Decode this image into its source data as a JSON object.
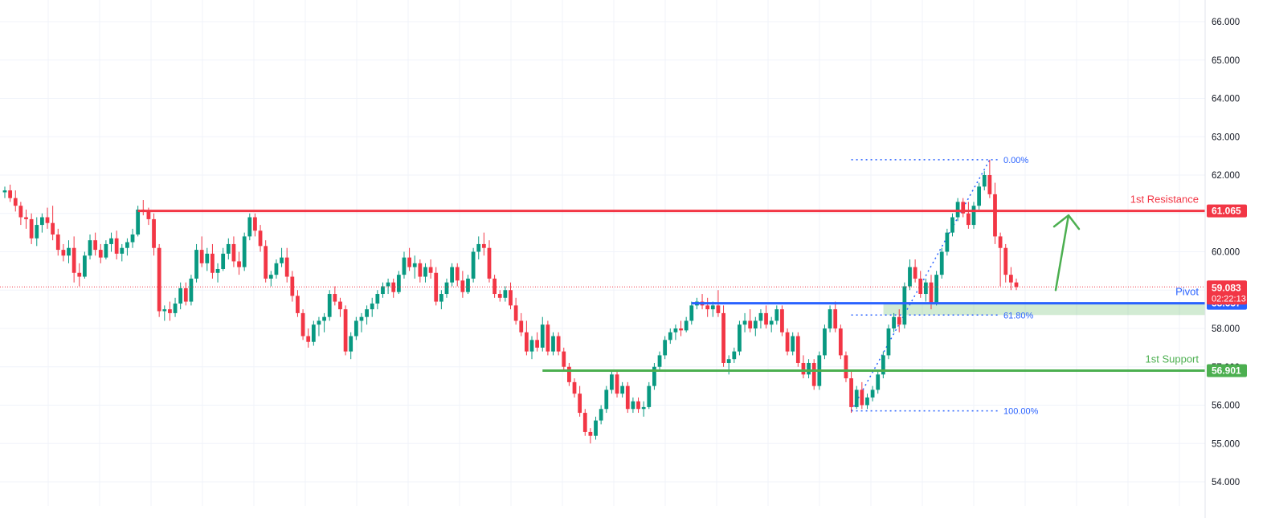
{
  "chart_data": {
    "type": "candlestick",
    "y_axis_ticks": [
      "54.000",
      "55.000",
      "56.000",
      "57.000",
      "58.000",
      "59.000",
      "60.000",
      "61.000",
      "62.000",
      "63.000",
      "64.000",
      "65.000",
      "66.000"
    ],
    "ylim": [
      53.6,
      66.3
    ],
    "grid": true,
    "candles": [
      [
        61.55,
        61.7,
        61.4,
        61.6
      ],
      [
        61.6,
        61.75,
        61.3,
        61.4
      ],
      [
        61.4,
        61.6,
        61.05,
        61.2
      ],
      [
        61.2,
        61.3,
        60.7,
        60.9
      ],
      [
        60.9,
        61.1,
        60.6,
        60.85
      ],
      [
        60.85,
        61.0,
        60.2,
        60.35
      ],
      [
        60.35,
        60.9,
        60.15,
        60.7
      ],
      [
        60.7,
        61.0,
        60.5,
        60.9
      ],
      [
        60.9,
        61.15,
        60.6,
        60.75
      ],
      [
        60.75,
        61.2,
        60.3,
        60.45
      ],
      [
        60.45,
        60.6,
        59.9,
        60.05
      ],
      [
        60.05,
        60.2,
        59.75,
        59.9
      ],
      [
        59.9,
        60.3,
        59.7,
        60.1
      ],
      [
        60.1,
        60.4,
        59.2,
        59.45
      ],
      [
        59.45,
        59.7,
        59.1,
        59.35
      ],
      [
        59.35,
        60.0,
        59.3,
        59.9
      ],
      [
        59.9,
        60.45,
        59.8,
        60.3
      ],
      [
        60.3,
        60.5,
        59.9,
        60.05
      ],
      [
        60.05,
        60.2,
        59.7,
        59.85
      ],
      [
        59.85,
        60.3,
        59.8,
        60.2
      ],
      [
        60.2,
        60.5,
        60.0,
        60.35
      ],
      [
        60.35,
        60.55,
        59.8,
        59.95
      ],
      [
        59.95,
        60.2,
        59.75,
        60.1
      ],
      [
        60.1,
        60.35,
        59.9,
        60.25
      ],
      [
        60.25,
        60.6,
        60.1,
        60.45
      ],
      [
        60.45,
        61.2,
        60.4,
        61.1
      ],
      [
        61.1,
        61.35,
        60.95,
        61.05
      ],
      [
        61.05,
        61.15,
        60.7,
        60.85
      ],
      [
        60.85,
        61.0,
        59.9,
        60.1
      ],
      [
        60.1,
        60.2,
        58.3,
        58.45
      ],
      [
        58.45,
        58.6,
        58.2,
        58.5
      ],
      [
        58.5,
        58.7,
        58.2,
        58.4
      ],
      [
        58.4,
        58.8,
        58.3,
        58.65
      ],
      [
        58.65,
        59.2,
        58.5,
        59.05
      ],
      [
        59.05,
        59.2,
        58.6,
        58.7
      ],
      [
        58.7,
        59.4,
        58.6,
        59.3
      ],
      [
        59.3,
        60.2,
        59.2,
        60.05
      ],
      [
        60.05,
        60.4,
        59.6,
        59.7
      ],
      [
        59.7,
        60.1,
        59.5,
        59.95
      ],
      [
        59.95,
        60.2,
        59.3,
        59.45
      ],
      [
        59.45,
        59.7,
        59.2,
        59.55
      ],
      [
        59.55,
        60.1,
        59.5,
        59.95
      ],
      [
        59.95,
        60.35,
        59.8,
        60.2
      ],
      [
        60.2,
        60.4,
        59.6,
        59.75
      ],
      [
        59.75,
        60.0,
        59.4,
        59.6
      ],
      [
        59.6,
        60.5,
        59.5,
        60.4
      ],
      [
        60.4,
        61.0,
        60.3,
        60.9
      ],
      [
        60.9,
        61.0,
        60.4,
        60.55
      ],
      [
        60.55,
        60.7,
        60.0,
        60.15
      ],
      [
        60.15,
        60.3,
        59.2,
        59.3
      ],
      [
        59.3,
        59.5,
        59.1,
        59.4
      ],
      [
        59.4,
        59.8,
        59.3,
        59.7
      ],
      [
        59.7,
        60.1,
        59.6,
        59.85
      ],
      [
        59.85,
        60.1,
        59.2,
        59.35
      ],
      [
        59.35,
        59.5,
        58.7,
        58.85
      ],
      [
        58.85,
        59.0,
        58.3,
        58.4
      ],
      [
        58.4,
        58.5,
        57.7,
        57.8
      ],
      [
        57.8,
        58.0,
        57.5,
        57.65
      ],
      [
        57.65,
        58.2,
        57.55,
        58.1
      ],
      [
        58.1,
        58.3,
        57.8,
        58.2
      ],
      [
        58.2,
        58.4,
        57.9,
        58.3
      ],
      [
        58.3,
        59.0,
        58.2,
        58.9
      ],
      [
        58.9,
        59.1,
        58.6,
        58.7
      ],
      [
        58.7,
        58.8,
        58.3,
        58.5
      ],
      [
        58.5,
        58.6,
        57.3,
        57.4
      ],
      [
        57.4,
        57.9,
        57.2,
        57.8
      ],
      [
        57.8,
        58.3,
        57.7,
        58.2
      ],
      [
        58.2,
        58.4,
        57.9,
        58.3
      ],
      [
        58.3,
        58.6,
        58.1,
        58.5
      ],
      [
        58.5,
        58.8,
        58.3,
        58.65
      ],
      [
        58.65,
        59.0,
        58.5,
        58.9
      ],
      [
        58.9,
        59.2,
        58.8,
        59.1
      ],
      [
        59.1,
        59.3,
        58.9,
        59.2
      ],
      [
        59.2,
        59.3,
        58.8,
        58.95
      ],
      [
        58.95,
        59.5,
        58.9,
        59.4
      ],
      [
        59.4,
        60.0,
        59.3,
        59.85
      ],
      [
        59.85,
        60.1,
        59.5,
        59.6
      ],
      [
        59.6,
        59.9,
        59.3,
        59.7
      ],
      [
        59.7,
        59.8,
        59.2,
        59.35
      ],
      [
        59.35,
        59.7,
        59.2,
        59.6
      ],
      [
        59.6,
        59.8,
        59.3,
        59.45
      ],
      [
        59.45,
        59.6,
        58.6,
        58.7
      ],
      [
        58.7,
        59.0,
        58.5,
        58.9
      ],
      [
        58.9,
        59.3,
        58.8,
        59.2
      ],
      [
        59.2,
        59.7,
        59.1,
        59.6
      ],
      [
        59.6,
        59.7,
        59.1,
        59.25
      ],
      [
        59.25,
        59.5,
        58.8,
        58.95
      ],
      [
        58.95,
        59.4,
        58.9,
        59.3
      ],
      [
        59.3,
        60.1,
        59.2,
        60.0
      ],
      [
        60.0,
        60.4,
        59.8,
        60.2
      ],
      [
        60.2,
        60.5,
        59.9,
        60.1
      ],
      [
        60.1,
        60.3,
        59.2,
        59.3
      ],
      [
        59.3,
        59.4,
        58.8,
        58.9
      ],
      [
        58.9,
        59.0,
        58.7,
        58.8
      ],
      [
        58.8,
        59.1,
        58.7,
        59.0
      ],
      [
        59.0,
        59.2,
        58.5,
        58.6
      ],
      [
        58.6,
        58.8,
        58.1,
        58.2
      ],
      [
        58.2,
        58.4,
        57.8,
        57.9
      ],
      [
        57.9,
        58.2,
        57.3,
        57.4
      ],
      [
        57.4,
        57.8,
        57.2,
        57.7
      ],
      [
        57.7,
        57.9,
        57.4,
        57.5
      ],
      [
        57.5,
        58.3,
        57.4,
        58.1
      ],
      [
        58.1,
        58.2,
        57.3,
        57.4
      ],
      [
        57.4,
        57.9,
        57.3,
        57.8
      ],
      [
        57.8,
        57.9,
        57.3,
        57.4
      ],
      [
        57.4,
        57.5,
        56.9,
        57.0
      ],
      [
        57.0,
        57.1,
        56.5,
        56.6
      ],
      [
        56.6,
        56.7,
        56.2,
        56.3
      ],
      [
        56.3,
        56.5,
        55.7,
        55.8
      ],
      [
        55.8,
        55.9,
        55.2,
        55.3
      ],
      [
        55.3,
        55.4,
        55.0,
        55.2
      ],
      [
        55.2,
        55.7,
        55.1,
        55.6
      ],
      [
        55.6,
        56.0,
        55.5,
        55.9
      ],
      [
        55.9,
        56.5,
        55.8,
        56.4
      ],
      [
        56.4,
        56.9,
        56.3,
        56.8
      ],
      [
        56.8,
        56.9,
        56.2,
        56.3
      ],
      [
        56.3,
        56.6,
        56.2,
        56.5
      ],
      [
        56.5,
        56.6,
        55.8,
        55.9
      ],
      [
        55.9,
        56.2,
        55.8,
        56.1
      ],
      [
        56.1,
        56.2,
        55.8,
        55.9
      ],
      [
        55.9,
        56.1,
        55.7,
        55.95
      ],
      [
        55.95,
        56.6,
        55.9,
        56.5
      ],
      [
        56.5,
        57.1,
        56.4,
        57.0
      ],
      [
        57.0,
        57.4,
        56.9,
        57.3
      ],
      [
        57.3,
        57.8,
        57.2,
        57.7
      ],
      [
        57.7,
        58.0,
        57.6,
        57.9
      ],
      [
        57.9,
        58.1,
        57.7,
        58.0
      ],
      [
        58.0,
        58.2,
        57.8,
        57.95
      ],
      [
        57.95,
        58.3,
        57.9,
        58.2
      ],
      [
        58.2,
        58.7,
        58.1,
        58.6
      ],
      [
        58.6,
        58.8,
        58.5,
        58.7
      ],
      [
        58.7,
        58.9,
        58.5,
        58.6
      ],
      [
        58.6,
        58.8,
        58.3,
        58.5
      ],
      [
        58.5,
        58.7,
        58.3,
        58.6
      ],
      [
        58.6,
        59.0,
        58.3,
        58.4
      ],
      [
        58.4,
        58.6,
        57.0,
        57.1
      ],
      [
        57.1,
        57.3,
        56.8,
        57.2
      ],
      [
        57.2,
        57.5,
        57.1,
        57.4
      ],
      [
        57.4,
        58.2,
        57.3,
        58.1
      ],
      [
        58.1,
        58.4,
        57.9,
        58.2
      ],
      [
        58.2,
        58.5,
        57.9,
        58.0
      ],
      [
        58.0,
        58.3,
        57.8,
        58.2
      ],
      [
        58.2,
        58.5,
        58.0,
        58.4
      ],
      [
        58.4,
        58.6,
        58.0,
        58.1
      ],
      [
        58.1,
        58.3,
        57.9,
        58.2
      ],
      [
        58.2,
        58.6,
        58.1,
        58.5
      ],
      [
        58.5,
        58.6,
        57.8,
        57.9
      ],
      [
        57.9,
        58.0,
        57.3,
        57.4
      ],
      [
        57.4,
        57.9,
        57.3,
        57.8
      ],
      [
        57.8,
        57.9,
        57.0,
        57.1
      ],
      [
        57.1,
        57.3,
        56.7,
        56.8
      ],
      [
        56.8,
        57.2,
        56.7,
        57.1
      ],
      [
        57.1,
        57.2,
        56.4,
        56.5
      ],
      [
        56.5,
        57.4,
        56.4,
        57.3
      ],
      [
        57.3,
        58.1,
        57.2,
        58.0
      ],
      [
        58.0,
        58.6,
        57.9,
        58.5
      ],
      [
        58.5,
        58.7,
        57.9,
        58.0
      ],
      [
        58.0,
        58.1,
        57.2,
        57.3
      ],
      [
        57.3,
        57.4,
        56.6,
        56.7
      ],
      [
        56.7,
        56.9,
        55.8,
        55.95
      ],
      [
        55.95,
        56.5,
        55.9,
        56.4
      ],
      [
        56.4,
        56.6,
        55.9,
        56.0
      ],
      [
        56.0,
        56.3,
        55.9,
        56.2
      ],
      [
        56.2,
        56.5,
        56.1,
        56.4
      ],
      [
        56.4,
        56.9,
        56.3,
        56.8
      ],
      [
        56.8,
        57.4,
        56.7,
        57.3
      ],
      [
        57.3,
        58.1,
        57.2,
        58.0
      ],
      [
        58.0,
        58.4,
        57.9,
        58.3
      ],
      [
        58.3,
        58.5,
        57.9,
        58.1
      ],
      [
        58.1,
        59.2,
        58.0,
        59.1
      ],
      [
        59.1,
        59.8,
        59.0,
        59.6
      ],
      [
        59.6,
        59.8,
        59.2,
        59.3
      ],
      [
        59.3,
        59.5,
        58.8,
        58.9
      ],
      [
        58.9,
        59.3,
        58.7,
        59.2
      ],
      [
        59.2,
        59.4,
        58.5,
        58.65
      ],
      [
        58.65,
        59.5,
        58.6,
        59.4
      ],
      [
        59.4,
        60.1,
        59.3,
        60.0
      ],
      [
        60.0,
        60.6,
        59.9,
        60.5
      ],
      [
        60.5,
        61.0,
        60.4,
        60.9
      ],
      [
        60.9,
        61.4,
        60.8,
        61.3
      ],
      [
        61.3,
        61.4,
        60.9,
        61.0
      ],
      [
        61.0,
        61.3,
        60.6,
        60.7
      ],
      [
        60.7,
        61.3,
        60.6,
        61.2
      ],
      [
        61.2,
        61.8,
        61.1,
        61.7
      ],
      [
        61.7,
        62.1,
        61.6,
        62.0
      ],
      [
        62.0,
        62.4,
        61.4,
        61.5
      ],
      [
        61.5,
        61.8,
        60.2,
        60.4
      ],
      [
        60.4,
        60.5,
        59.1,
        60.1
      ],
      [
        60.1,
        60.2,
        59.2,
        59.4
      ],
      [
        59.4,
        59.6,
        59.0,
        59.2
      ],
      [
        59.2,
        59.3,
        59.0,
        59.083
      ]
    ],
    "levels": [
      {
        "label": "1st Resistance",
        "value_label": "61.065",
        "value": 61.065,
        "color": "#f23645"
      },
      {
        "label": "Pivot",
        "value_label": "58.657",
        "value": 58.657,
        "color": "#2962ff"
      },
      {
        "label": "1st Support",
        "value_label": "56.901",
        "value": 56.901,
        "color": "#4caf50"
      }
    ],
    "current_price": {
      "value": 59.083,
      "value_label": "59.083",
      "countdown": "02:22:13",
      "color": "#f23645"
    },
    "fibonacci": {
      "high": 62.4,
      "low": 55.85,
      "labels": [
        "0.00%",
        "61.80%",
        "100.00%"
      ],
      "retracement_618": 58.35,
      "color": "#2962ff"
    },
    "pivot_zone": [
      58.35,
      58.657
    ],
    "projection_arrow": {
      "color": "#4caf50",
      "from": 59.0,
      "to": 60.95
    },
    "colors": {
      "up": "#089981",
      "down": "#f23645",
      "grid": "#f0f3fa",
      "axis_text": "#131722"
    }
  }
}
